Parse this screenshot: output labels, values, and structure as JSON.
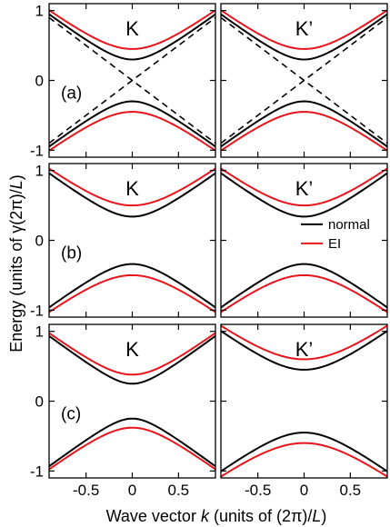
{
  "chart_data": {
    "type": "line",
    "xlabel": "Wave vector k  (units of (2π)/L)",
    "xlabel_parts": {
      "prefix": "Wave vector ",
      "k": "k",
      "middle": "  (units of (2π)/",
      "L": "L",
      "suffix": ")"
    },
    "ylabel": "Energy  (units of γ(2π)/L)",
    "ylabel_parts": {
      "prefix": "Energy  (units of γ(2π)/",
      "L": "L",
      "suffix": ")"
    },
    "xlim": [
      -0.9,
      0.9
    ],
    "ylim": [
      -1.1,
      1.1
    ],
    "x_ticks": [
      -0.5,
      0,
      0.5
    ],
    "x_tick_labels": [
      "-0.5",
      "0",
      "0.5"
    ],
    "y_ticks": [
      -1,
      0,
      1
    ],
    "y_tick_labels": [
      "-1",
      "0",
      "1"
    ],
    "colors": {
      "normal": "#000000",
      "EI": "#e8141b",
      "dirac": "#000000"
    },
    "legend": {
      "placement": "right, row (b) K' panel",
      "entries": [
        {
          "name": "normal",
          "color": "#000000"
        },
        {
          "name": "EI",
          "color": "#e8141b"
        }
      ]
    },
    "rows": [
      {
        "label": "(a)",
        "panels": [
          {
            "valley": "K",
            "normal_gap": 0.3,
            "ei_gap": 0.45,
            "upper_only_gap": false,
            "dirac_lines": true
          },
          {
            "valley": "K’",
            "normal_gap": 0.3,
            "ei_gap": 0.45,
            "dirac_lines": true
          }
        ]
      },
      {
        "label": "(b)",
        "panels": [
          {
            "valley": "K",
            "normal_gap_upper": 0.34,
            "normal_gap_lower": 0.34,
            "ei_gap_upper": 0.5,
            "ei_gap_lower": 0.5,
            "dirac_lines": false
          },
          {
            "valley": "K’",
            "normal_gap_upper": 0.34,
            "normal_gap_lower": 0.34,
            "ei_gap_upper": 0.5,
            "ei_gap_lower": 0.5,
            "dirac_lines": false,
            "legend": true
          }
        ]
      },
      {
        "label": "(c)",
        "panels": [
          {
            "valley": "K",
            "normal_gap_upper": 0.25,
            "normal_gap_lower": 0.25,
            "ei_gap_upper": 0.38,
            "ei_gap_lower": 0.38,
            "dirac_lines": false
          },
          {
            "valley": "K’",
            "normal_gap_upper": 0.45,
            "normal_gap_lower": 0.45,
            "ei_gap_upper": 0.6,
            "ei_gap_lower": 0.6,
            "dirac_lines": false
          }
        ]
      }
    ]
  }
}
